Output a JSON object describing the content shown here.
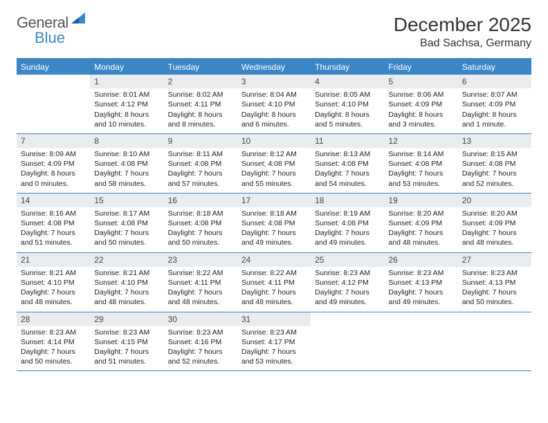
{
  "brand": {
    "part1": "General",
    "part2": "Blue"
  },
  "title": "December 2025",
  "location": "Bad Sachsa, Germany",
  "colors": {
    "accent": "#3d86c6",
    "daynum_bg": "#e9edf0",
    "text": "#333333",
    "page_bg": "#ffffff"
  },
  "dow": [
    "Sunday",
    "Monday",
    "Tuesday",
    "Wednesday",
    "Thursday",
    "Friday",
    "Saturday"
  ],
  "weeks": [
    [
      {
        "n": "",
        "lines": []
      },
      {
        "n": "1",
        "lines": [
          "Sunrise: 8:01 AM",
          "Sunset: 4:12 PM",
          "Daylight: 8 hours",
          "and 10 minutes."
        ]
      },
      {
        "n": "2",
        "lines": [
          "Sunrise: 8:02 AM",
          "Sunset: 4:11 PM",
          "Daylight: 8 hours",
          "and 8 minutes."
        ]
      },
      {
        "n": "3",
        "lines": [
          "Sunrise: 8:04 AM",
          "Sunset: 4:10 PM",
          "Daylight: 8 hours",
          "and 6 minutes."
        ]
      },
      {
        "n": "4",
        "lines": [
          "Sunrise: 8:05 AM",
          "Sunset: 4:10 PM",
          "Daylight: 8 hours",
          "and 5 minutes."
        ]
      },
      {
        "n": "5",
        "lines": [
          "Sunrise: 8:06 AM",
          "Sunset: 4:09 PM",
          "Daylight: 8 hours",
          "and 3 minutes."
        ]
      },
      {
        "n": "6",
        "lines": [
          "Sunrise: 8:07 AM",
          "Sunset: 4:09 PM",
          "Daylight: 8 hours",
          "and 1 minute."
        ]
      }
    ],
    [
      {
        "n": "7",
        "lines": [
          "Sunrise: 8:09 AM",
          "Sunset: 4:09 PM",
          "Daylight: 8 hours",
          "and 0 minutes."
        ]
      },
      {
        "n": "8",
        "lines": [
          "Sunrise: 8:10 AM",
          "Sunset: 4:08 PM",
          "Daylight: 7 hours",
          "and 58 minutes."
        ]
      },
      {
        "n": "9",
        "lines": [
          "Sunrise: 8:11 AM",
          "Sunset: 4:08 PM",
          "Daylight: 7 hours",
          "and 57 minutes."
        ]
      },
      {
        "n": "10",
        "lines": [
          "Sunrise: 8:12 AM",
          "Sunset: 4:08 PM",
          "Daylight: 7 hours",
          "and 55 minutes."
        ]
      },
      {
        "n": "11",
        "lines": [
          "Sunrise: 8:13 AM",
          "Sunset: 4:08 PM",
          "Daylight: 7 hours",
          "and 54 minutes."
        ]
      },
      {
        "n": "12",
        "lines": [
          "Sunrise: 8:14 AM",
          "Sunset: 4:08 PM",
          "Daylight: 7 hours",
          "and 53 minutes."
        ]
      },
      {
        "n": "13",
        "lines": [
          "Sunrise: 8:15 AM",
          "Sunset: 4:08 PM",
          "Daylight: 7 hours",
          "and 52 minutes."
        ]
      }
    ],
    [
      {
        "n": "14",
        "lines": [
          "Sunrise: 8:16 AM",
          "Sunset: 4:08 PM",
          "Daylight: 7 hours",
          "and 51 minutes."
        ]
      },
      {
        "n": "15",
        "lines": [
          "Sunrise: 8:17 AM",
          "Sunset: 4:08 PM",
          "Daylight: 7 hours",
          "and 50 minutes."
        ]
      },
      {
        "n": "16",
        "lines": [
          "Sunrise: 8:18 AM",
          "Sunset: 4:08 PM",
          "Daylight: 7 hours",
          "and 50 minutes."
        ]
      },
      {
        "n": "17",
        "lines": [
          "Sunrise: 8:18 AM",
          "Sunset: 4:08 PM",
          "Daylight: 7 hours",
          "and 49 minutes."
        ]
      },
      {
        "n": "18",
        "lines": [
          "Sunrise: 8:19 AM",
          "Sunset: 4:08 PM",
          "Daylight: 7 hours",
          "and 49 minutes."
        ]
      },
      {
        "n": "19",
        "lines": [
          "Sunrise: 8:20 AM",
          "Sunset: 4:09 PM",
          "Daylight: 7 hours",
          "and 48 minutes."
        ]
      },
      {
        "n": "20",
        "lines": [
          "Sunrise: 8:20 AM",
          "Sunset: 4:09 PM",
          "Daylight: 7 hours",
          "and 48 minutes."
        ]
      }
    ],
    [
      {
        "n": "21",
        "lines": [
          "Sunrise: 8:21 AM",
          "Sunset: 4:10 PM",
          "Daylight: 7 hours",
          "and 48 minutes."
        ]
      },
      {
        "n": "22",
        "lines": [
          "Sunrise: 8:21 AM",
          "Sunset: 4:10 PM",
          "Daylight: 7 hours",
          "and 48 minutes."
        ]
      },
      {
        "n": "23",
        "lines": [
          "Sunrise: 8:22 AM",
          "Sunset: 4:11 PM",
          "Daylight: 7 hours",
          "and 48 minutes."
        ]
      },
      {
        "n": "24",
        "lines": [
          "Sunrise: 8:22 AM",
          "Sunset: 4:11 PM",
          "Daylight: 7 hours",
          "and 48 minutes."
        ]
      },
      {
        "n": "25",
        "lines": [
          "Sunrise: 8:23 AM",
          "Sunset: 4:12 PM",
          "Daylight: 7 hours",
          "and 49 minutes."
        ]
      },
      {
        "n": "26",
        "lines": [
          "Sunrise: 8:23 AM",
          "Sunset: 4:13 PM",
          "Daylight: 7 hours",
          "and 49 minutes."
        ]
      },
      {
        "n": "27",
        "lines": [
          "Sunrise: 8:23 AM",
          "Sunset: 4:13 PM",
          "Daylight: 7 hours",
          "and 50 minutes."
        ]
      }
    ],
    [
      {
        "n": "28",
        "lines": [
          "Sunrise: 8:23 AM",
          "Sunset: 4:14 PM",
          "Daylight: 7 hours",
          "and 50 minutes."
        ]
      },
      {
        "n": "29",
        "lines": [
          "Sunrise: 8:23 AM",
          "Sunset: 4:15 PM",
          "Daylight: 7 hours",
          "and 51 minutes."
        ]
      },
      {
        "n": "30",
        "lines": [
          "Sunrise: 8:23 AM",
          "Sunset: 4:16 PM",
          "Daylight: 7 hours",
          "and 52 minutes."
        ]
      },
      {
        "n": "31",
        "lines": [
          "Sunrise: 8:23 AM",
          "Sunset: 4:17 PM",
          "Daylight: 7 hours",
          "and 53 minutes."
        ]
      },
      {
        "n": "",
        "lines": []
      },
      {
        "n": "",
        "lines": []
      },
      {
        "n": "",
        "lines": []
      }
    ]
  ]
}
